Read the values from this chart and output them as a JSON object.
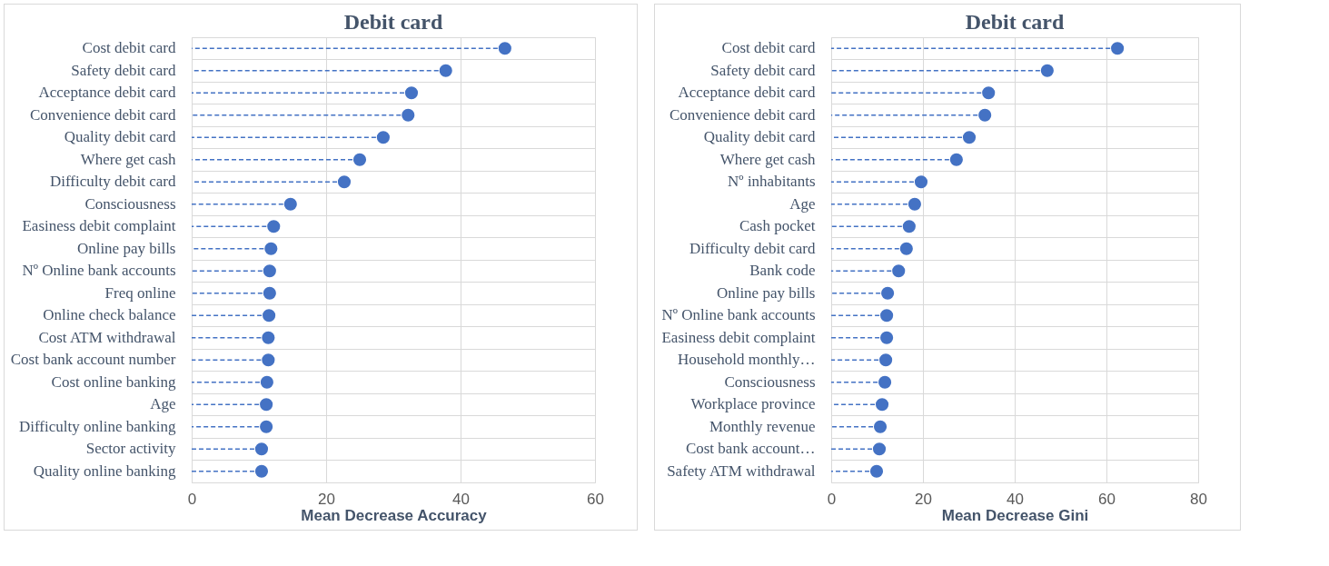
{
  "chart_data": [
    {
      "type": "lollipop",
      "orientation": "horizontal",
      "title": "Debit card",
      "xlabel": "Mean Decrease Accuracy",
      "color": "#4472c4",
      "marker": "circle",
      "line_style": "dashed",
      "grid": true,
      "xlim": [
        0,
        60
      ],
      "xticks": [
        0,
        20,
        40,
        60
      ],
      "categories": [
        "Cost debit card",
        "Safety debit card",
        "Acceptance debit card",
        "Convenience debit card",
        "Quality debit card",
        "Where get cash",
        "Difficulty debit card",
        "Consciousness",
        "Easiness debit complaint",
        "Online pay bills",
        "Nº Online bank accounts",
        "Freq online",
        "Online check balance",
        "Cost ATM withdrawal",
        "Cost bank account number",
        "Cost online banking",
        "Age",
        "Difficulty online banking",
        "Sector activity",
        "Quality online banking"
      ],
      "values": [
        46.6,
        37.8,
        32.7,
        32.2,
        28.5,
        25.0,
        22.7,
        14.7,
        12.2,
        11.8,
        11.6,
        11.6,
        11.5,
        11.4,
        11.4,
        11.2,
        11.1,
        11.1,
        10.4,
        10.4
      ]
    },
    {
      "type": "lollipop",
      "orientation": "horizontal",
      "title": "Debit card",
      "xlabel": "Mean Decrease Gini",
      "color": "#4472c4",
      "marker": "circle",
      "line_style": "dashed",
      "grid": true,
      "xlim": [
        0,
        80
      ],
      "xticks": [
        0,
        20,
        40,
        60,
        80
      ],
      "categories": [
        "Cost debit card",
        "Safety debit card",
        "Acceptance debit card",
        "Convenience debit card",
        "Quality debit card",
        "Where get cash",
        "Nº inhabitants",
        "Age",
        "Cash pocket",
        "Difficulty debit card",
        "Bank code",
        "Online pay bills",
        "Nº Online bank accounts",
        "Easiness debit complaint",
        "Household monthly…",
        "Consciousness",
        "Workplace province",
        "Monthly revenue",
        "Cost bank account…",
        "Safety ATM withdrawal"
      ],
      "values": [
        62.4,
        47.1,
        34.3,
        33.5,
        30.1,
        27.3,
        19.6,
        18.2,
        17.0,
        16.4,
        14.7,
        12.3,
        12.1,
        12.1,
        11.9,
        11.7,
        11.1,
        10.7,
        10.5,
        9.9
      ]
    }
  ]
}
